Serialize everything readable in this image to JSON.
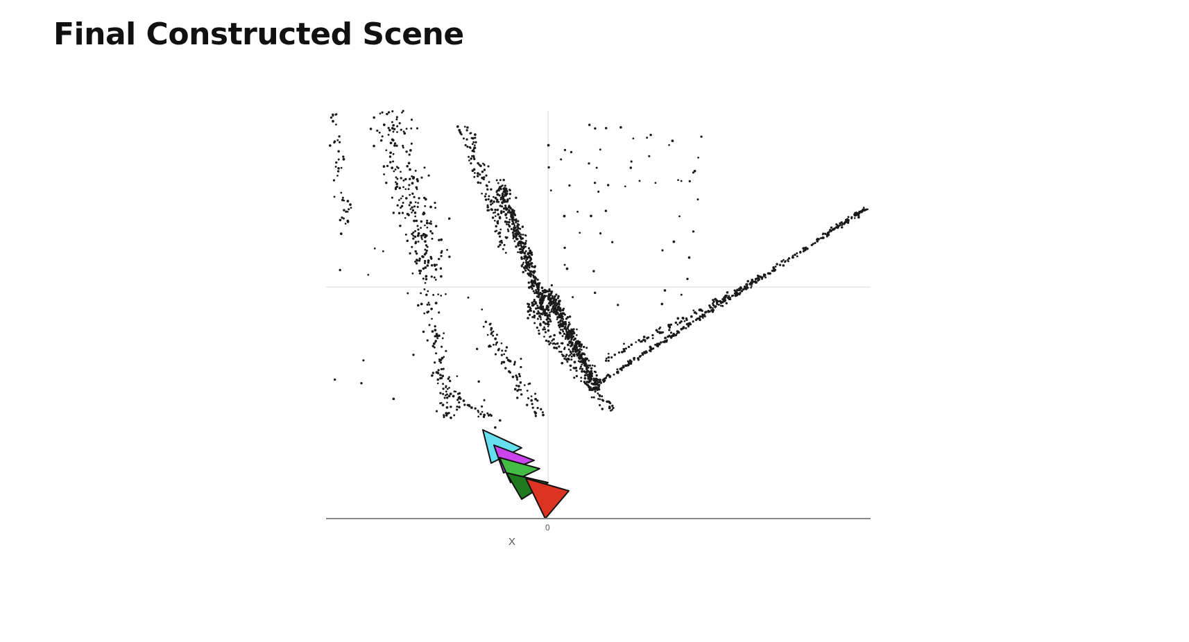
{
  "slide": {
    "title": "Final Constructed Scene"
  },
  "scene": {
    "description_type": "3d-point-cloud-with-camera-poses",
    "axis_labels": {
      "origin": "0",
      "axis": "X"
    },
    "colors": {
      "points": "#1a1a1a",
      "gridline": "#e6e6e6",
      "axis": "#888888",
      "cameras": [
        "#66e0f0",
        "#cc44ee",
        "#44bb44",
        "#1f7a1f",
        "#dd3322"
      ],
      "camera_edge": "#111111"
    },
    "camera_count": 5,
    "point_cloud_structure": [
      "left-vertical-cluster",
      "main-diagonal-cluster",
      "right-diagonal-line"
    ]
  }
}
